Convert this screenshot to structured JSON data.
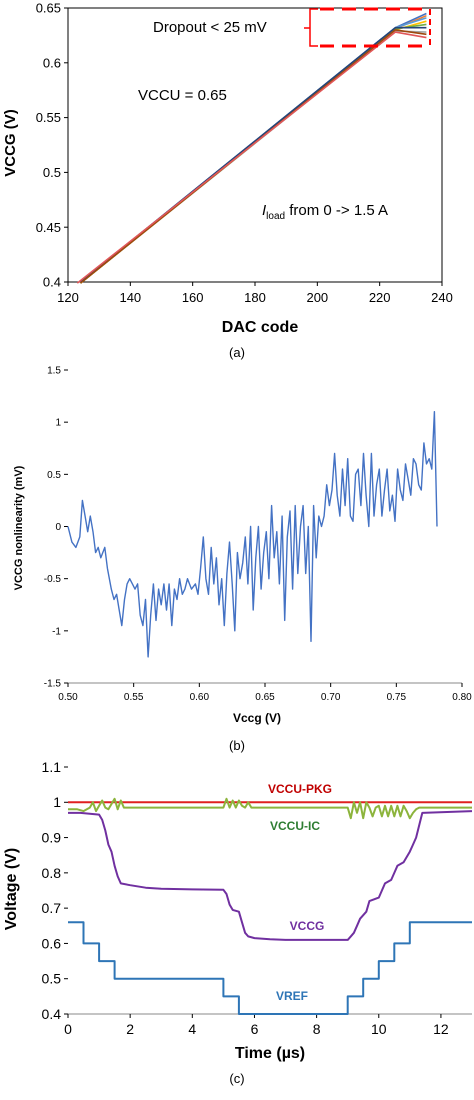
{
  "chart_data": [
    {
      "type": "line",
      "panel_label": "(a)",
      "xlabel": "DAC code",
      "ylabel": "VCCG (V)",
      "xlim": [
        120,
        240
      ],
      "ylim": [
        0.4,
        0.65
      ],
      "x_ticks": [
        "120",
        "140",
        "160",
        "180",
        "200",
        "220",
        "240"
      ],
      "y_ticks": [
        "0.4",
        "0.45",
        "0.5",
        "0.55",
        "0.6",
        "0.65"
      ],
      "annotations": {
        "dropout": "Dropout < 25 mV",
        "vccu": "VCCU = 0.65",
        "iload_prefix": "I",
        "iload_sub": "load",
        "iload_suffix": " from 0 -> 1.5 A"
      },
      "colors": {
        "axis": "#000000",
        "highlight": "#ff0000"
      },
      "series": [
        {
          "color": "#4472c4",
          "x": [
            124,
            225,
            235
          ],
          "y": [
            0.4,
            0.632,
            0.645
          ]
        },
        {
          "color": "#ed7d31",
          "x": [
            124,
            225,
            235
          ],
          "y": [
            0.399,
            0.631,
            0.643
          ]
        },
        {
          "color": "#a5a5a5",
          "x": [
            124,
            225,
            235
          ],
          "y": [
            0.399,
            0.629,
            0.628
          ]
        },
        {
          "color": "#ffc000",
          "x": [
            124,
            225,
            235
          ],
          "y": [
            0.399,
            0.63,
            0.638
          ]
        },
        {
          "color": "#5b9bd5",
          "x": [
            124,
            225,
            235
          ],
          "y": [
            0.4,
            0.632,
            0.641
          ]
        },
        {
          "color": "#70ad47",
          "x": [
            124,
            225,
            235
          ],
          "y": [
            0.399,
            0.631,
            0.635
          ]
        },
        {
          "color": "#264478",
          "x": [
            124,
            225,
            235
          ],
          "y": [
            0.4,
            0.632,
            0.632
          ]
        },
        {
          "color": "#9e480e",
          "x": [
            124,
            225,
            235
          ],
          "y": [
            0.399,
            0.63,
            0.626
          ]
        },
        {
          "color": "#e15759",
          "x": [
            123,
            225,
            235
          ],
          "y": [
            0.399,
            0.628,
            0.623
          ]
        }
      ]
    },
    {
      "type": "line",
      "panel_label": "(b)",
      "xlabel": "Vccg (V)",
      "ylabel": "VCCG  nonlinearity (mV)",
      "xlim": [
        0.5,
        0.8
      ],
      "ylim": [
        -1.5,
        1.5
      ],
      "x_ticks": [
        "0.50",
        "0.55",
        "0.60",
        "0.65",
        "0.70",
        "0.75",
        "0.80"
      ],
      "y_ticks": [
        "-1.5",
        "-1",
        "-0.5",
        "0",
        "0.5",
        "1",
        "1.5"
      ],
      "colors": {
        "line": "#4472c4"
      },
      "series": [
        {
          "color": "#4472c4",
          "x": [
            0.5,
            0.503,
            0.506,
            0.509,
            0.511,
            0.513,
            0.515,
            0.517,
            0.519,
            0.521,
            0.523,
            0.525,
            0.528,
            0.53,
            0.533,
            0.535,
            0.537,
            0.539,
            0.541,
            0.543,
            0.545,
            0.547,
            0.549,
            0.551,
            0.553,
            0.555,
            0.557,
            0.559,
            0.561,
            0.563,
            0.565,
            0.567,
            0.569,
            0.571,
            0.573,
            0.575,
            0.577,
            0.579,
            0.581,
            0.583,
            0.585,
            0.587,
            0.589,
            0.591,
            0.594,
            0.597,
            0.599,
            0.601,
            0.603,
            0.605,
            0.607,
            0.609,
            0.611,
            0.613,
            0.615,
            0.617,
            0.619,
            0.621,
            0.623,
            0.625,
            0.627,
            0.629,
            0.631,
            0.633,
            0.635,
            0.637,
            0.639,
            0.641,
            0.643,
            0.645,
            0.647,
            0.649,
            0.651,
            0.653,
            0.655,
            0.657,
            0.659,
            0.661,
            0.663,
            0.665,
            0.667,
            0.669,
            0.671,
            0.673,
            0.675,
            0.677,
            0.679,
            0.681,
            0.683,
            0.685,
            0.687,
            0.689,
            0.691,
            0.693,
            0.695,
            0.697,
            0.699,
            0.701,
            0.703,
            0.705,
            0.707,
            0.709,
            0.711,
            0.713,
            0.715,
            0.717,
            0.719,
            0.721,
            0.723,
            0.725,
            0.727,
            0.729,
            0.731,
            0.733,
            0.735,
            0.737,
            0.739,
            0.741,
            0.743,
            0.745,
            0.747,
            0.749,
            0.751,
            0.753,
            0.755,
            0.757,
            0.759,
            0.761,
            0.763,
            0.765,
            0.767,
            0.769,
            0.771,
            0.773,
            0.775,
            0.777,
            0.779,
            0.781
          ],
          "y": [
            0.0,
            -0.15,
            -0.2,
            -0.1,
            0.25,
            0.1,
            -0.05,
            0.1,
            -0.05,
            -0.25,
            -0.2,
            -0.3,
            -0.2,
            -0.4,
            -0.6,
            -0.7,
            -0.65,
            -0.8,
            -0.95,
            -0.7,
            -0.55,
            -0.5,
            -0.55,
            -0.6,
            -0.55,
            -0.85,
            -0.95,
            -0.7,
            -1.25,
            -0.85,
            -0.55,
            -0.9,
            -0.6,
            -0.75,
            -0.55,
            -0.8,
            -0.55,
            -0.95,
            -0.6,
            -0.7,
            -0.5,
            -0.65,
            -0.6,
            -0.5,
            -0.6,
            -0.55,
            -0.65,
            -0.4,
            -0.1,
            -0.5,
            -0.65,
            -0.2,
            -0.55,
            -0.3,
            -0.75,
            -0.5,
            -0.95,
            -0.45,
            -0.15,
            -0.55,
            -1.0,
            -0.25,
            -0.5,
            -0.35,
            -0.1,
            -0.55,
            0.0,
            -0.8,
            -0.3,
            0.0,
            -0.6,
            -0.25,
            -0.05,
            -0.5,
            0.2,
            -0.3,
            -0.05,
            -0.55,
            0.1,
            -0.9,
            -0.1,
            0.15,
            -0.6,
            0.2,
            -0.45,
            0.0,
            0.2,
            -0.45,
            0.0,
            -1.1,
            0.2,
            -0.3,
            0.1,
            0.0,
            0.1,
            0.4,
            0.2,
            0.35,
            0.7,
            0.3,
            0.1,
            0.55,
            0.2,
            0.65,
            0.1,
            0.05,
            0.5,
            0.55,
            0.2,
            0.7,
            0.3,
            0.0,
            0.7,
            0.1,
            0.4,
            0.55,
            0.1,
            0.35,
            0.55,
            0.15,
            0.3,
            0.05,
            0.55,
            0.35,
            0.25,
            0.6,
            0.45,
            0.3,
            0.65,
            0.6,
            0.4,
            0.35,
            0.8,
            0.6,
            0.65,
            0.55,
            1.1,
            0.0
          ]
        }
      ]
    },
    {
      "type": "line",
      "panel_label": "(c)",
      "xlabel": "Time (µs)",
      "ylabel": "Voltage (V)",
      "xlim": [
        0,
        13
      ],
      "ylim": [
        0.4,
        1.1
      ],
      "x_ticks": [
        "0",
        "2",
        "4",
        "6",
        "8",
        "10",
        "12"
      ],
      "y_ticks": [
        "0.4",
        "0.5",
        "0.6",
        "0.7",
        "0.8",
        "0.9",
        "1",
        "1.1"
      ],
      "series": [
        {
          "name": "VCCU-PKG",
          "color": "#e02020",
          "x": [
            0,
            13
          ],
          "y": [
            1.0,
            1.0
          ]
        },
        {
          "name": "VCCU-IC",
          "color": "#8cb43c",
          "x": [
            0,
            0.3,
            0.5,
            0.7,
            0.8,
            0.9,
            1.0,
            1.1,
            1.2,
            1.3,
            1.5,
            1.6,
            1.7,
            1.8,
            2.0,
            5.0,
            5.1,
            5.2,
            5.3,
            5.4,
            5.5,
            5.6,
            5.7,
            5.8,
            5.9,
            6.0,
            9.0,
            9.1,
            9.2,
            9.3,
            9.4,
            9.5,
            9.6,
            9.7,
            9.8,
            9.9,
            10.0,
            10.1,
            10.2,
            10.3,
            10.4,
            10.5,
            10.6,
            10.7,
            10.8,
            10.9,
            11.0,
            11.1,
            11.2,
            11.3,
            11.5,
            13.0
          ],
          "y": [
            0.98,
            0.98,
            0.975,
            0.985,
            1.0,
            0.975,
            0.99,
            1.005,
            0.985,
            0.98,
            1.01,
            0.98,
            1.005,
            0.985,
            0.985,
            0.985,
            1.01,
            0.985,
            1.005,
            0.985,
            1.005,
            0.99,
            0.985,
            1.0,
            0.985,
            0.985,
            0.985,
            0.955,
            1.0,
            0.97,
            1.0,
            0.955,
            1.0,
            0.985,
            0.96,
            0.985,
            0.99,
            0.96,
            0.99,
            0.96,
            0.99,
            0.96,
            0.99,
            0.96,
            0.99,
            0.975,
            0.955,
            0.97,
            0.98,
            0.985,
            0.985,
            0.985
          ]
        },
        {
          "name": "VCCG",
          "color": "#7030a0",
          "x": [
            0,
            0.4,
            1.0,
            1.1,
            1.2,
            1.3,
            1.4,
            1.5,
            1.6,
            1.7,
            2.0,
            2.5,
            3.0,
            4.0,
            5.0,
            5.1,
            5.2,
            5.3,
            5.5,
            5.6,
            5.7,
            5.8,
            6.0,
            6.5,
            7.0,
            8.0,
            9.0,
            9.1,
            9.2,
            9.3,
            9.4,
            9.5,
            9.6,
            9.7,
            10.0,
            10.1,
            10.2,
            10.4,
            10.5,
            10.6,
            10.8,
            11.0,
            11.1,
            11.2,
            11.4,
            13.0
          ],
          "y": [
            0.97,
            0.97,
            0.965,
            0.95,
            0.92,
            0.88,
            0.86,
            0.82,
            0.79,
            0.77,
            0.765,
            0.758,
            0.755,
            0.753,
            0.752,
            0.74,
            0.71,
            0.695,
            0.69,
            0.66,
            0.63,
            0.62,
            0.615,
            0.612,
            0.61,
            0.61,
            0.61,
            0.62,
            0.63,
            0.65,
            0.67,
            0.68,
            0.69,
            0.72,
            0.73,
            0.75,
            0.77,
            0.78,
            0.8,
            0.82,
            0.83,
            0.86,
            0.88,
            0.9,
            0.97,
            0.975
          ]
        },
        {
          "name": "VREF",
          "color": "#2e75b6",
          "x": [
            0,
            0.5,
            0.5,
            1.0,
            1.0,
            1.5,
            1.5,
            5.0,
            5.0,
            5.5,
            5.5,
            9.0,
            9.0,
            9.5,
            9.5,
            10.0,
            10.0,
            10.5,
            10.5,
            11.0,
            11.0,
            13.0
          ],
          "y": [
            0.66,
            0.66,
            0.6,
            0.6,
            0.55,
            0.55,
            0.5,
            0.5,
            0.45,
            0.45,
            0.4,
            0.4,
            0.45,
            0.45,
            0.5,
            0.5,
            0.55,
            0.55,
            0.6,
            0.6,
            0.66,
            0.66
          ]
        }
      ]
    }
  ]
}
